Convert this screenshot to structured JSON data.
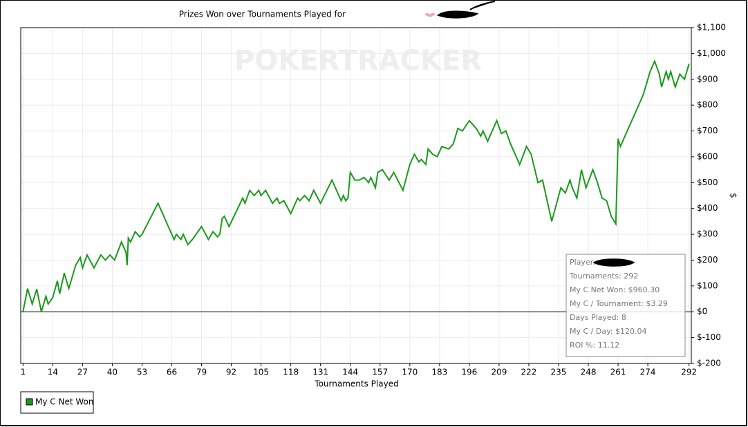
{
  "chart_data": {
    "type": "line",
    "title": "Prizes Won over Tournaments Played for",
    "watermark": "POKERTRACKER",
    "x_label": "Tournaments Played",
    "y_label": "$",
    "xlim": [
      0,
      293
    ],
    "xticks": [
      1,
      14,
      27,
      40,
      53,
      66,
      79,
      92,
      105,
      118,
      131,
      144,
      157,
      170,
      183,
      196,
      209,
      222,
      235,
      248,
      261,
      274,
      292
    ],
    "ylim": [
      -200,
      1100
    ],
    "yticks": [
      {
        "value": -200,
        "label": "$-200"
      },
      {
        "value": -100,
        "label": "$-100"
      },
      {
        "value": 0,
        "label": "$0"
      },
      {
        "value": 100,
        "label": "$100"
      },
      {
        "value": 200,
        "label": "$200"
      },
      {
        "value": 300,
        "label": "$300"
      },
      {
        "value": 400,
        "label": "$400"
      },
      {
        "value": 500,
        "label": "$500"
      },
      {
        "value": 600,
        "label": "$600"
      },
      {
        "value": 700,
        "label": "$700"
      },
      {
        "value": 800,
        "label": "$800"
      },
      {
        "value": 900,
        "label": "$900"
      },
      {
        "value": 1000,
        "label": "$1,000"
      },
      {
        "value": 1100,
        "label": "$1,100"
      }
    ],
    "grid": true,
    "x": [
      1,
      3,
      5,
      7,
      9,
      11,
      12,
      14,
      16,
      17,
      19,
      21,
      24,
      26,
      27,
      29,
      32,
      35,
      37,
      39,
      41,
      44,
      46,
      46.5,
      47,
      48,
      50,
      52,
      53,
      60,
      67,
      68,
      70,
      71,
      73,
      75,
      79,
      82,
      84,
      86,
      87,
      88,
      89,
      91,
      97,
      98,
      100,
      102,
      104,
      105,
      107,
      110,
      112,
      113,
      115,
      118,
      121,
      122,
      124,
      126,
      128,
      131,
      136,
      140,
      141,
      142,
      143,
      144,
      146,
      148,
      150,
      152,
      153,
      155,
      156,
      158,
      161,
      163,
      167,
      170,
      172,
      174,
      175,
      177,
      178,
      180,
      182,
      183,
      184,
      187,
      189,
      191,
      193,
      196,
      199,
      201,
      202,
      204,
      206,
      208,
      210,
      212,
      214,
      218,
      221,
      223,
      226,
      228,
      232,
      236,
      238,
      240,
      241,
      243,
      245,
      247,
      250,
      252,
      254,
      256,
      258,
      260,
      261,
      262,
      272,
      274,
      275,
      277,
      279,
      280,
      282,
      283,
      284,
      286,
      288,
      290,
      292
    ],
    "series": [
      {
        "name": "My C Net Won",
        "color": "#1a9a1a",
        "values": [
          0,
          90,
          30,
          88,
          0,
          60,
          30,
          55,
          120,
          70,
          150,
          90,
          180,
          210,
          170,
          220,
          170,
          220,
          200,
          220,
          200,
          270,
          230,
          180,
          285,
          270,
          310,
          290,
          300,
          420,
          280,
          300,
          280,
          300,
          260,
          280,
          330,
          280,
          310,
          290,
          300,
          360,
          370,
          330,
          440,
          420,
          470,
          450,
          470,
          450,
          470,
          420,
          440,
          420,
          430,
          380,
          440,
          430,
          450,
          430,
          470,
          420,
          510,
          430,
          450,
          430,
          440,
          540,
          510,
          510,
          520,
          500,
          520,
          480,
          540,
          550,
          510,
          540,
          470,
          570,
          610,
          580,
          590,
          570,
          630,
          610,
          600,
          620,
          640,
          630,
          650,
          710,
          700,
          740,
          710,
          680,
          700,
          660,
          700,
          740,
          690,
          700,
          650,
          570,
          640,
          610,
          500,
          510,
          350,
          480,
          460,
          510,
          480,
          440,
          550,
          480,
          550,
          500,
          440,
          430,
          370,
          340,
          670,
          640,
          840,
          900,
          930,
          970,
          920,
          870,
          930,
          900,
          930,
          870,
          920,
          900,
          960
        ]
      }
    ],
    "info_box": [
      "Player:",
      "Tournaments: 292",
      "My C Net Won: $960.30",
      "My C / Tournament: $3.29",
      "Days Played: 8",
      "My C / Day: $120.04",
      "ROI %: 11.12"
    ],
    "legend_position": "bottom-left"
  }
}
